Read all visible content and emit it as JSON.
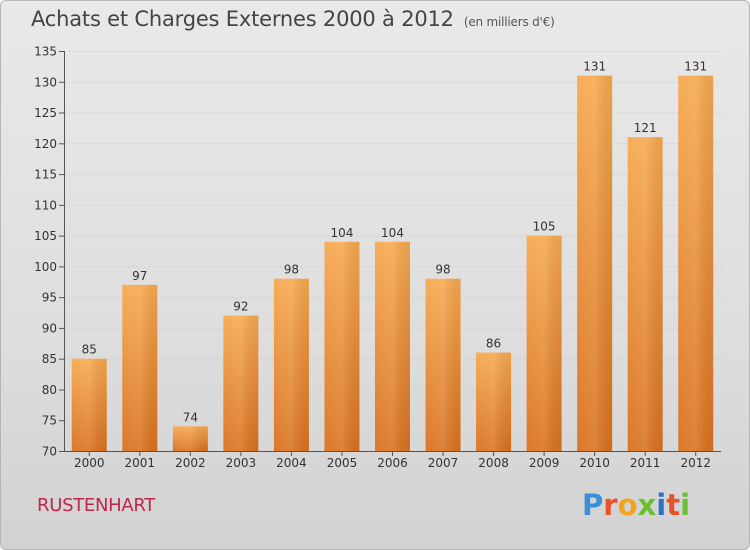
{
  "header": {
    "title": "Achats et Charges Externes 2000 à 2012",
    "subtitle": "(en milliers d'€)"
  },
  "footer": {
    "place": "RUSTENHART",
    "brand": "Proxiti",
    "brand_colors": [
      "#3a8fd8",
      "#e8522a",
      "#f1a51c",
      "#6cbf2e",
      "#2a74c8",
      "#e8522a",
      "#6cbf2e"
    ]
  },
  "colors": {
    "bar_light": "#f6a950",
    "bar_dark": "#d9711f",
    "grid": "#cfcfcf",
    "axis": "#555555"
  },
  "chart_data": {
    "type": "bar",
    "categories": [
      "2000",
      "2001",
      "2002",
      "2003",
      "2004",
      "2005",
      "2006",
      "2007",
      "2008",
      "2009",
      "2010",
      "2011",
      "2012"
    ],
    "values": [
      85,
      97,
      74,
      92,
      98,
      104,
      104,
      98,
      86,
      105,
      131,
      121,
      131
    ],
    "ylim": [
      70,
      135
    ],
    "yticks": [
      70,
      75,
      80,
      85,
      90,
      95,
      100,
      105,
      110,
      115,
      120,
      125,
      130,
      135
    ],
    "grid": true
  }
}
